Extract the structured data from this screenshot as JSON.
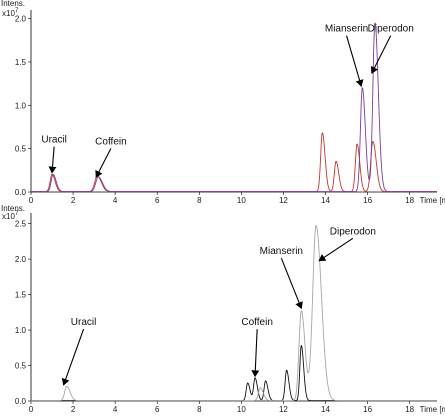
{
  "chart_data": [
    {
      "type": "line",
      "panel": "top",
      "ylabel": "Intens.",
      "yunit_base": "x10",
      "yunit_exp": "7",
      "xlabel": "Time [min]",
      "xticks": [
        0,
        2,
        4,
        6,
        8,
        10,
        12,
        14,
        16,
        18
      ],
      "yticks": [
        "0.0",
        "0.5",
        "1.0",
        "1.5",
        "2.0"
      ],
      "xlim": [
        0,
        19.3
      ],
      "ylim": [
        0,
        2.1
      ],
      "grid": false,
      "series": [
        {
          "color": "#c0392b",
          "peaks": [
            {
              "rt": 1.0,
              "h": 0.2,
              "w": 0.09
            },
            {
              "rt": 3.15,
              "h": 0.18,
              "w": 0.12
            },
            {
              "rt": 13.85,
              "h": 0.68,
              "w": 0.08
            },
            {
              "rt": 14.5,
              "h": 0.35,
              "w": 0.08
            },
            {
              "rt": 15.5,
              "h": 0.55,
              "w": 0.08
            },
            {
              "rt": 16.25,
              "h": 0.58,
              "w": 0.1
            }
          ]
        },
        {
          "color": "#7d3c98",
          "peaks": [
            {
              "rt": 1.05,
              "h": 0.2,
              "w": 0.09
            },
            {
              "rt": 3.2,
              "h": 0.17,
              "w": 0.12
            },
            {
              "rt": 15.75,
              "h": 1.2,
              "w": 0.09
            },
            {
              "rt": 16.35,
              "h": 1.95,
              "w": 0.1
            }
          ]
        }
      ],
      "annotations": [
        {
          "text": "Uracil",
          "label_x": 1.1,
          "label_y": 0.57,
          "tip_x": 1.0,
          "tip_y": 0.2
        },
        {
          "text": "Coffein",
          "label_x": 3.8,
          "label_y": 0.55,
          "tip_x": 3.1,
          "tip_y": 0.15
        },
        {
          "text": "Mianserin",
          "label_x": 15.0,
          "label_y": 1.85,
          "tip_x": 15.7,
          "tip_y": 1.2
        },
        {
          "text": "Diperodon",
          "label_x": 17.1,
          "label_y": 1.85,
          "tip_x": 16.2,
          "tip_y": 1.35
        }
      ]
    },
    {
      "type": "line",
      "panel": "bottom",
      "ylabel": "Intens.",
      "yunit_base": "x10",
      "yunit_exp": "7",
      "xlabel": "Time [min]",
      "xticks": [
        0,
        2,
        4,
        6,
        8,
        10,
        12,
        14,
        16,
        18
      ],
      "yticks": [
        "0.0",
        "0.5",
        "1.0",
        "1.5",
        "2.0",
        "2.5"
      ],
      "xlim": [
        0,
        19.3
      ],
      "ylim": [
        0,
        2.65
      ],
      "grid": false,
      "series": [
        {
          "color": "#111111",
          "peaks": [
            {
              "rt": 10.3,
              "h": 0.25,
              "w": 0.07
            },
            {
              "rt": 10.65,
              "h": 0.32,
              "w": 0.07
            },
            {
              "rt": 11.15,
              "h": 0.28,
              "w": 0.07
            },
            {
              "rt": 12.15,
              "h": 0.43,
              "w": 0.07
            },
            {
              "rt": 12.85,
              "h": 0.78,
              "w": 0.07
            }
          ]
        },
        {
          "color": "#a6a6a6",
          "peaks": [
            {
              "rt": 1.7,
              "h": 0.2,
              "w": 0.1
            },
            {
              "rt": 10.9,
              "h": 0.18,
              "w": 0.09
            },
            {
              "rt": 12.85,
              "h": 1.27,
              "w": 0.11
            },
            {
              "rt": 13.55,
              "h": 2.47,
              "w": 0.16
            }
          ]
        }
      ],
      "annotations": [
        {
          "text": "Uracil",
          "label_x": 2.5,
          "label_y": 1.07,
          "tip_x": 1.55,
          "tip_y": 0.2
        },
        {
          "text": "Coffein",
          "label_x": 10.75,
          "label_y": 1.07,
          "tip_x": 10.65,
          "tip_y": 0.32
        },
        {
          "text": "Mianserin",
          "label_x": 11.9,
          "label_y": 2.07,
          "tip_x": 12.85,
          "tip_y": 1.28
        },
        {
          "text": "Diperodon",
          "label_x": 15.3,
          "label_y": 2.35,
          "tip_x": 13.7,
          "tip_y": 1.95
        }
      ]
    }
  ]
}
